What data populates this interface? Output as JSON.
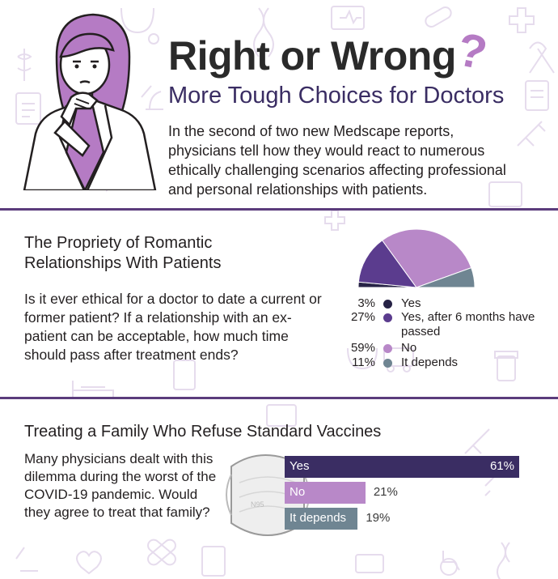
{
  "header": {
    "title": "Right or Wrong",
    "question_mark": "?",
    "subtitle": "More Tough Choices for Doctors",
    "intro": "In the second of two new Medscape reports, physicians tell how they would react to numerous ethically challenging scenarios affecting professional and personal relationships with patients."
  },
  "section1": {
    "heading": "The Propriety of Romantic Relationships With Patients",
    "question": "Is it ever ethical for a doctor to date a current or former patient? If a relationship with an ex-patient can be acceptable, how much time should pass after treatment ends?"
  },
  "section2": {
    "heading": "Treating a Family Who Refuse Standard Vaccines",
    "question": "Many physicians dealt with this dilemma during the worst of the COVID-19 pandemic. Would they agree to treat that family?",
    "mask_text": "N95"
  },
  "chart_data": [
    {
      "type": "pie",
      "layout": "half-pie",
      "categories": [
        "Yes",
        "Yes, after 6 months have passed",
        "No",
        "It depends"
      ],
      "values": [
        3,
        27,
        59,
        11
      ],
      "labels": [
        "3%",
        "27%",
        "59%",
        "11%"
      ],
      "colors": [
        "#262245",
        "#5b3c8e",
        "#b888c8",
        "#6f8592"
      ],
      "legend": "right-below"
    },
    {
      "type": "bar",
      "orientation": "horizontal",
      "categories": [
        "Yes",
        "No",
        "It depends"
      ],
      "values": [
        61,
        21,
        19
      ],
      "labels": [
        "61%",
        "21%",
        "19%"
      ],
      "colors": [
        "#3a2d63",
        "#b888c8",
        "#6f8592"
      ]
    }
  ],
  "colors": {
    "divider": "#5b3c7c",
    "subtitle": "#3a2d63",
    "accent": "#b57bc4",
    "background_icons": "#e6dced"
  },
  "decor": {
    "illustration": "doctor-thinking-illustration",
    "background": "medical-icons-pattern"
  }
}
